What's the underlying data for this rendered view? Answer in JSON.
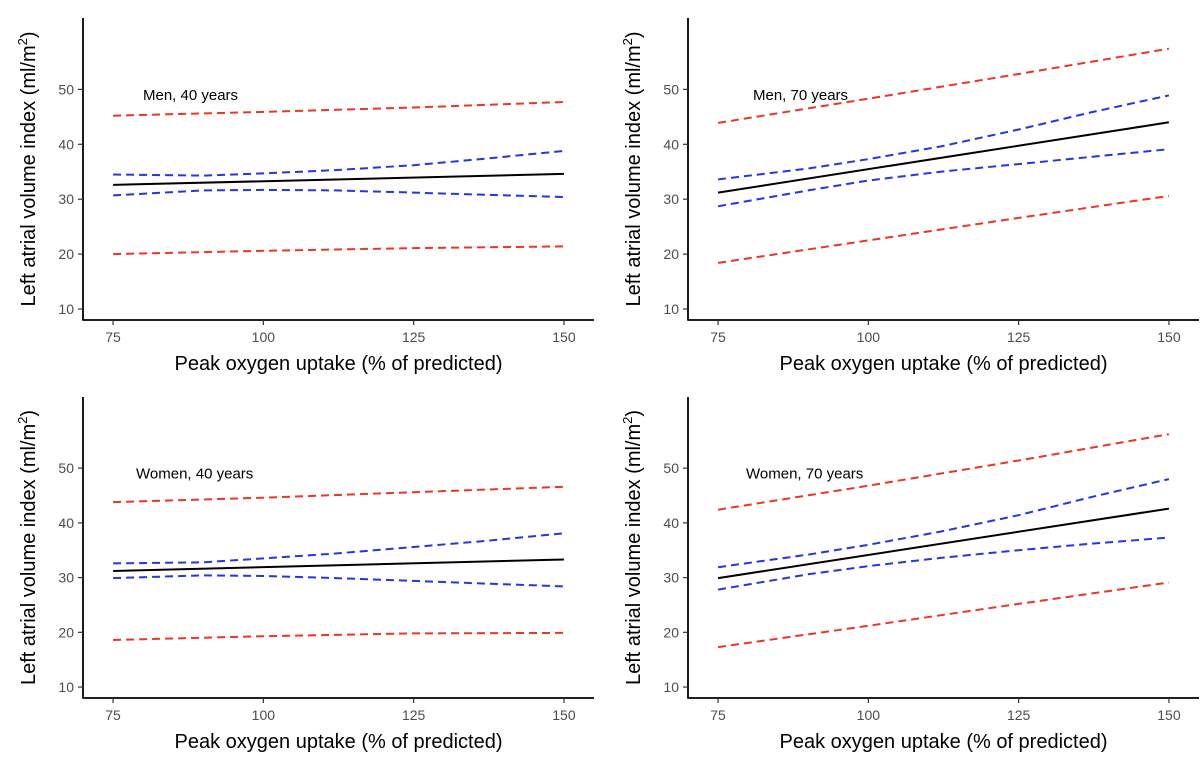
{
  "chart_data": [
    {
      "type": "line",
      "annotation": "Men, 40 years",
      "xlabel": "Peak oxygen uptake (% of predicted)",
      "ylabel_main": "Left atrial volume index (ml/m",
      "ylabel_sup": "2",
      "ylabel_close": ")",
      "xlim": [
        70,
        155
      ],
      "ylim": [
        8,
        63
      ],
      "xticks": [
        75,
        100,
        125,
        150
      ],
      "yticks": [
        10,
        20,
        30,
        40,
        50
      ],
      "grid": false,
      "legend": "none",
      "series": [
        {
          "style": "dashed",
          "color": "#ee3524",
          "x": [
            75,
            100,
            125,
            150
          ],
          "y": [
            45.2,
            45.9,
            46.7,
            47.7
          ]
        },
        {
          "style": "dashed",
          "color": "#2137e6",
          "x": [
            75,
            90,
            100,
            112,
            125,
            137,
            150
          ],
          "y": [
            34.5,
            34.3,
            34.7,
            35.3,
            36.2,
            37.4,
            38.8
          ]
        },
        {
          "style": "solid",
          "color": "#000000",
          "x": [
            75,
            150
          ],
          "y": [
            32.6,
            34.6
          ]
        },
        {
          "style": "dashed",
          "color": "#2137e6",
          "x": [
            75,
            90,
            100,
            112,
            125,
            137,
            150
          ],
          "y": [
            30.7,
            31.6,
            31.7,
            31.6,
            31.2,
            30.8,
            30.4
          ]
        },
        {
          "style": "dashed",
          "color": "#ee3524",
          "x": [
            75,
            100,
            125,
            150
          ],
          "y": [
            20.0,
            20.6,
            21.1,
            21.4
          ]
        }
      ]
    },
    {
      "type": "line",
      "annotation": "Men, 70 years",
      "xlabel": "Peak oxygen uptake (% of predicted)",
      "ylabel_main": "Left atrial volume index (ml/m",
      "ylabel_sup": "2",
      "ylabel_close": ")",
      "xlim": [
        70,
        155
      ],
      "ylim": [
        8,
        63
      ],
      "xticks": [
        75,
        100,
        125,
        150
      ],
      "yticks": [
        10,
        20,
        30,
        40,
        50
      ],
      "grid": false,
      "legend": "none",
      "series": [
        {
          "style": "dashed",
          "color": "#ee3524",
          "x": [
            75,
            100,
            125,
            150
          ],
          "y": [
            43.9,
            48.3,
            52.8,
            57.4
          ]
        },
        {
          "style": "dashed",
          "color": "#2137e6",
          "x": [
            75,
            90,
            100,
            112,
            125,
            137,
            150
          ],
          "y": [
            33.6,
            35.6,
            37.3,
            39.6,
            42.7,
            45.8,
            48.9
          ]
        },
        {
          "style": "solid",
          "color": "#000000",
          "x": [
            75,
            150
          ],
          "y": [
            31.2,
            44.0
          ]
        },
        {
          "style": "dashed",
          "color": "#2137e6",
          "x": [
            75,
            90,
            100,
            112,
            125,
            137,
            150
          ],
          "y": [
            28.7,
            31.6,
            33.4,
            35.0,
            36.4,
            37.7,
            39.1
          ]
        },
        {
          "style": "dashed",
          "color": "#ee3524",
          "x": [
            75,
            100,
            125,
            150
          ],
          "y": [
            18.4,
            22.5,
            26.6,
            30.6
          ]
        }
      ]
    },
    {
      "type": "line",
      "annotation": "Women, 40 years",
      "xlabel": "Peak oxygen uptake (% of predicted)",
      "ylabel_main": "Left atrial volume index (ml/m",
      "ylabel_sup": "2",
      "ylabel_close": ")",
      "xlim": [
        70,
        155
      ],
      "ylim": [
        8,
        63
      ],
      "xticks": [
        75,
        100,
        125,
        150
      ],
      "yticks": [
        10,
        20,
        30,
        40,
        50
      ],
      "grid": false,
      "legend": "none",
      "series": [
        {
          "style": "dashed",
          "color": "#ee3524",
          "x": [
            75,
            100,
            125,
            150
          ],
          "y": [
            43.8,
            44.6,
            45.6,
            46.6
          ]
        },
        {
          "style": "dashed",
          "color": "#2137e6",
          "x": [
            75,
            90,
            100,
            112,
            125,
            137,
            150
          ],
          "y": [
            32.6,
            32.8,
            33.5,
            34.4,
            35.6,
            36.7,
            38.1
          ]
        },
        {
          "style": "solid",
          "color": "#000000",
          "x": [
            75,
            150
          ],
          "y": [
            31.2,
            33.3
          ]
        },
        {
          "style": "dashed",
          "color": "#2137e6",
          "x": [
            75,
            90,
            100,
            112,
            125,
            137,
            150
          ],
          "y": [
            29.9,
            30.4,
            30.3,
            29.9,
            29.4,
            28.9,
            28.4
          ]
        },
        {
          "style": "dashed",
          "color": "#ee3524",
          "x": [
            75,
            100,
            125,
            150
          ],
          "y": [
            18.6,
            19.3,
            19.8,
            19.9
          ]
        }
      ]
    },
    {
      "type": "line",
      "annotation": "Women, 70 years",
      "xlabel": "Peak oxygen uptake (% of predicted)",
      "ylabel_main": "Left atrial volume index (ml/m",
      "ylabel_sup": "2",
      "ylabel_close": ")",
      "xlim": [
        70,
        155
      ],
      "ylim": [
        8,
        63
      ],
      "xticks": [
        75,
        100,
        125,
        150
      ],
      "yticks": [
        10,
        20,
        30,
        40,
        50
      ],
      "grid": false,
      "legend": "none",
      "series": [
        {
          "style": "dashed",
          "color": "#ee3524",
          "x": [
            75,
            100,
            125,
            150
          ],
          "y": [
            42.4,
            46.8,
            51.4,
            56.2
          ]
        },
        {
          "style": "dashed",
          "color": "#2137e6",
          "x": [
            75,
            90,
            100,
            112,
            125,
            137,
            150
          ],
          "y": [
            31.9,
            34.2,
            36.0,
            38.4,
            41.4,
            44.7,
            48.0
          ]
        },
        {
          "style": "solid",
          "color": "#000000",
          "x": [
            75,
            150
          ],
          "y": [
            29.9,
            42.6
          ]
        },
        {
          "style": "dashed",
          "color": "#2137e6",
          "x": [
            75,
            90,
            100,
            112,
            125,
            137,
            150
          ],
          "y": [
            27.8,
            30.6,
            32.1,
            33.6,
            35.0,
            36.2,
            37.3
          ]
        },
        {
          "style": "dashed",
          "color": "#ee3524",
          "x": [
            75,
            100,
            125,
            150
          ],
          "y": [
            17.3,
            21.2,
            25.2,
            29.1
          ]
        }
      ]
    }
  ]
}
